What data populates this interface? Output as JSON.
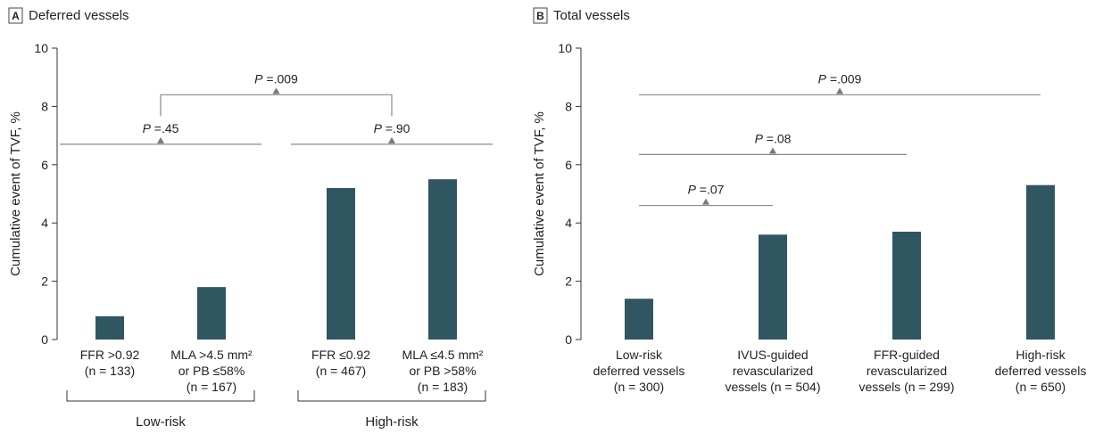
{
  "colors": {
    "bar": "#2f5661",
    "axis": "#333333",
    "bracket": "#8a8a8a",
    "marker": "#7a7a7a"
  },
  "chart_data": [
    {
      "type": "bar",
      "panel_letter": "A",
      "title": "Deferred vessels",
      "ylabel": "Cumulative event of TVF, %",
      "ylim": [
        0,
        10
      ],
      "yticks": [
        0,
        2,
        4,
        6,
        8,
        10
      ],
      "categories": [
        [
          "FFR >0.92",
          "(n = 133)"
        ],
        [
          "MLA >4.5 mm²",
          "or PB ≤58%",
          "(n = 167)"
        ],
        [
          "FFR ≤0.92",
          "(n = 467)"
        ],
        [
          "MLA ≤4.5 mm²",
          "or PB >58%",
          "(n = 183)"
        ]
      ],
      "values": [
        0.8,
        1.8,
        5.2,
        5.5
      ],
      "groups": [
        {
          "label": "Low-risk",
          "from": 0,
          "to": 1
        },
        {
          "label": "High-risk",
          "from": 2,
          "to": 3
        }
      ],
      "comparisons": [
        {
          "p_prefix": "P",
          "p_value": " =.45",
          "from": 0,
          "to": 1,
          "y": 6.7,
          "style": "line"
        },
        {
          "p_prefix": "P",
          "p_value": " =.90",
          "from": 2,
          "to": 3,
          "y": 6.7,
          "style": "line"
        },
        {
          "p_prefix": "P",
          "p_value": " =.009",
          "from": 0.5,
          "to": 2.5,
          "y": 8.4,
          "style": "bracket"
        }
      ]
    },
    {
      "type": "bar",
      "panel_letter": "B",
      "title": "Total vessels",
      "ylabel": "Cumulative event of TVF, %",
      "ylim": [
        0,
        10
      ],
      "yticks": [
        0,
        2,
        4,
        6,
        8,
        10
      ],
      "categories": [
        [
          "Low-risk",
          "deferred vessels",
          "(n = 300)"
        ],
        [
          "IVUS-guided",
          "revascularized",
          "vessels (n = 504)"
        ],
        [
          "FFR-guided",
          "revascularized",
          "vessels (n = 299)"
        ],
        [
          "High-risk",
          "deferred vessels",
          "(n = 650)"
        ]
      ],
      "values": [
        1.4,
        3.6,
        3.7,
        5.3
      ],
      "groups": [],
      "comparisons": [
        {
          "p_prefix": "P",
          "p_value": " =.07",
          "from": 0,
          "to": 1,
          "y": 4.6,
          "style": "line"
        },
        {
          "p_prefix": "P",
          "p_value": " =.08",
          "from": 0,
          "to": 2,
          "y": 6.35,
          "style": "line"
        },
        {
          "p_prefix": "P",
          "p_value": " =.009",
          "from": 0,
          "to": 3,
          "y": 8.4,
          "style": "line"
        }
      ]
    }
  ]
}
